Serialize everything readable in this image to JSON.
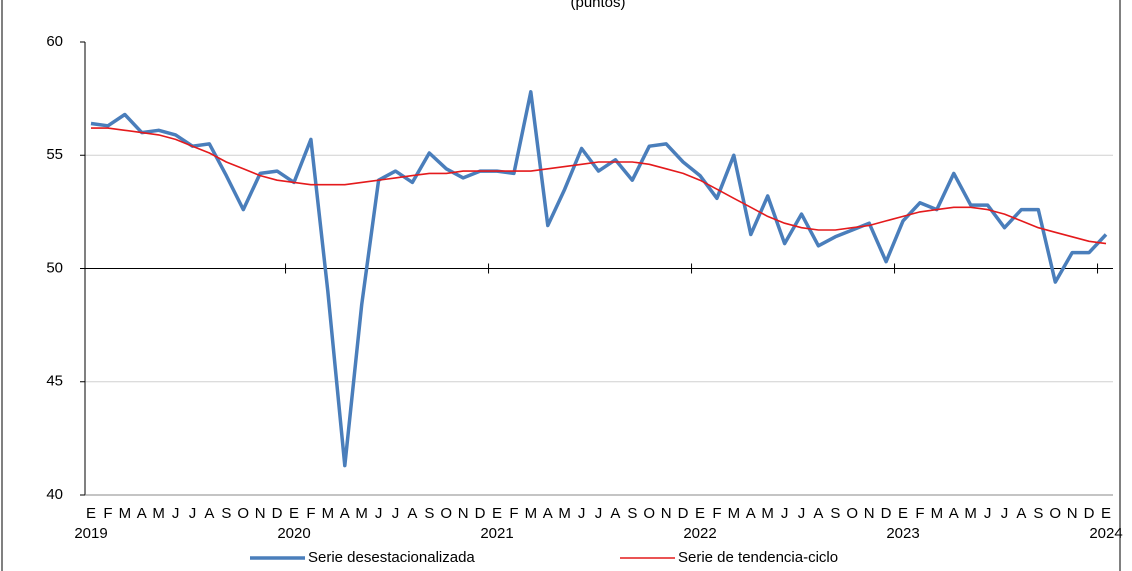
{
  "chart_data": {
    "type": "line",
    "title": "(puntos)",
    "categories": [
      "E",
      "F",
      "M",
      "A",
      "M",
      "J",
      "J",
      "A",
      "S",
      "O",
      "N",
      "D",
      "E",
      "F",
      "M",
      "A",
      "M",
      "J",
      "J",
      "A",
      "S",
      "O",
      "N",
      "D",
      "E",
      "F",
      "M",
      "A",
      "M",
      "J",
      "J",
      "A",
      "S",
      "O",
      "N",
      "D",
      "E",
      "F",
      "M",
      "A",
      "M",
      "J",
      "J",
      "A",
      "S",
      "O",
      "N",
      "D",
      "E",
      "F",
      "M",
      "A",
      "M",
      "J",
      "J",
      "A",
      "S",
      "O",
      "N",
      "D",
      "E"
    ],
    "year_labels": [
      "2019",
      null,
      null,
      null,
      null,
      null,
      null,
      null,
      null,
      null,
      null,
      null,
      "2020",
      null,
      null,
      null,
      null,
      null,
      null,
      null,
      null,
      null,
      null,
      null,
      "2021",
      null,
      null,
      null,
      null,
      null,
      null,
      null,
      null,
      null,
      null,
      null,
      "2022",
      null,
      null,
      null,
      null,
      null,
      null,
      null,
      null,
      null,
      null,
      null,
      "2023",
      null,
      null,
      null,
      null,
      null,
      null,
      null,
      null,
      null,
      null,
      null,
      "2024"
    ],
    "series": [
      {
        "name": "Serie desestacionalizada",
        "color": "#4a7ebb",
        "width": 3.5,
        "values": [
          56.4,
          56.3,
          56.8,
          56.0,
          56.1,
          55.9,
          55.4,
          55.5,
          54.1,
          52.6,
          54.2,
          54.3,
          53.8,
          55.7,
          49.0,
          41.3,
          48.4,
          53.9,
          54.3,
          53.8,
          55.1,
          54.4,
          54.0,
          54.3,
          54.3,
          54.2,
          57.8,
          51.9,
          53.5,
          55.3,
          54.3,
          54.8,
          53.9,
          55.4,
          55.5,
          54.7,
          54.1,
          53.1,
          55.0,
          51.5,
          53.2,
          51.1,
          52.4,
          51.0,
          51.4,
          51.7,
          52.0,
          50.3,
          52.1,
          52.9,
          52.6,
          54.2,
          52.8,
          52.8,
          51.8,
          52.6,
          52.6,
          49.4,
          50.7,
          50.7,
          51.5
        ]
      },
      {
        "name": "Serie de tendencia-ciclo",
        "color": "#e41a1c",
        "width": 1.6,
        "values": [
          56.2,
          56.2,
          56.1,
          56.0,
          55.9,
          55.7,
          55.4,
          55.1,
          54.7,
          54.4,
          54.1,
          53.9,
          53.8,
          53.7,
          53.7,
          53.7,
          53.8,
          53.9,
          54.0,
          54.1,
          54.2,
          54.2,
          54.3,
          54.3,
          54.3,
          54.3,
          54.3,
          54.4,
          54.5,
          54.6,
          54.7,
          54.7,
          54.7,
          54.6,
          54.4,
          54.2,
          53.9,
          53.5,
          53.1,
          52.7,
          52.3,
          52.0,
          51.8,
          51.7,
          51.7,
          51.8,
          51.9,
          52.1,
          52.3,
          52.5,
          52.6,
          52.7,
          52.7,
          52.6,
          52.4,
          52.1,
          51.8,
          51.6,
          51.4,
          51.2,
          51.1
        ]
      }
    ],
    "ylim": [
      40,
      60
    ],
    "yticks": [
      40,
      45,
      50,
      55,
      60
    ],
    "grid": true,
    "xaxis_crosses": 50,
    "legend": "bottom"
  }
}
